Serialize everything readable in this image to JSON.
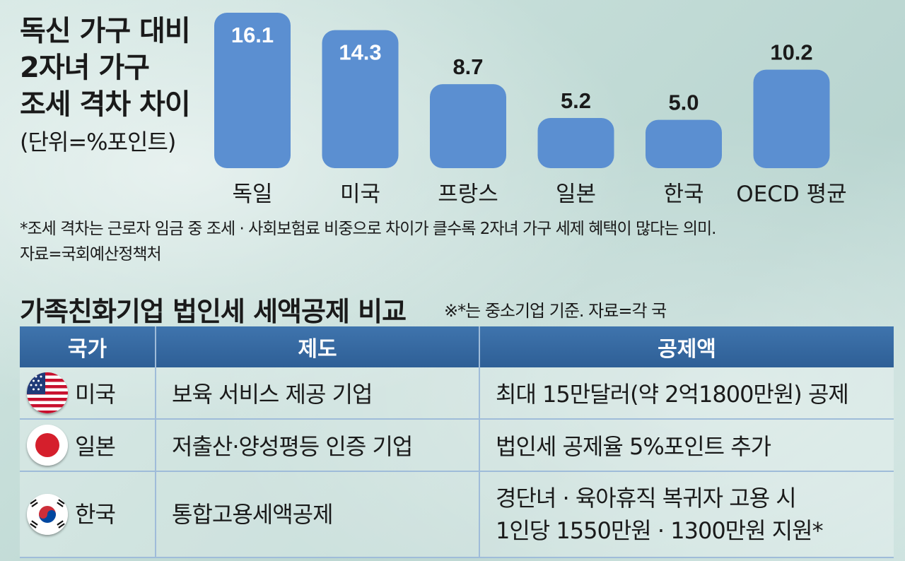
{
  "chart_title_lines": [
    "독신 가구 대비",
    "2자녀 가구",
    "조세 격차 차이"
  ],
  "chart_unit": "(단위=%포인트)",
  "chart_note": "*조세 격차는 근로자 임금 중 조세 · 사회보험료 비중으로 차이가 클수록 2자녀 가구 세제 혜택이 많다는 의미.",
  "chart_source": "자료=국회예산정책처",
  "colors": {
    "bar": "#5b8fd1",
    "label_inside": "#ffffff",
    "label_outside": "#1a1a1a",
    "table_header": "#3468a0"
  },
  "chart_data": {
    "type": "bar",
    "title": "독신 가구 대비 2자녀 가구 조세 격차 차이",
    "unit": "%포인트",
    "categories": [
      "독일",
      "미국",
      "프랑스",
      "일본",
      "한국",
      "OECD 평균"
    ],
    "values": [
      16.1,
      14.3,
      8.7,
      5.2,
      5.0,
      10.2
    ],
    "value_labels": [
      "16.1",
      "14.3",
      "8.7",
      "5.2",
      "5.0",
      "10.2"
    ],
    "ylim": [
      0,
      16.1
    ],
    "grid": false,
    "legend": "none"
  },
  "table": {
    "title": "가족친화기업 법인세 세액공제 비교",
    "note": "※*는 중소기업 기준. 자료=각 국",
    "headers": [
      "국가",
      "제도",
      "공제액"
    ],
    "rows": [
      {
        "flag_icon": "us-flag-icon",
        "country": "미국",
        "system": "보육 서비스 제공 기업",
        "amount": [
          "최대 15만달러(약 2억1800만원) 공제"
        ]
      },
      {
        "flag_icon": "japan-flag-icon",
        "country": "일본",
        "system": "저출산·양성평등 인증 기업",
        "amount": [
          "법인세 공제율 5%포인트 추가"
        ]
      },
      {
        "flag_icon": "korea-flag-icon",
        "country": "한국",
        "system": "통합고용세액공제",
        "amount": [
          "경단녀 · 육아휴직 복귀자 고용 시",
          "1인당 1550만원 · 1300만원 지원*"
        ]
      }
    ]
  }
}
